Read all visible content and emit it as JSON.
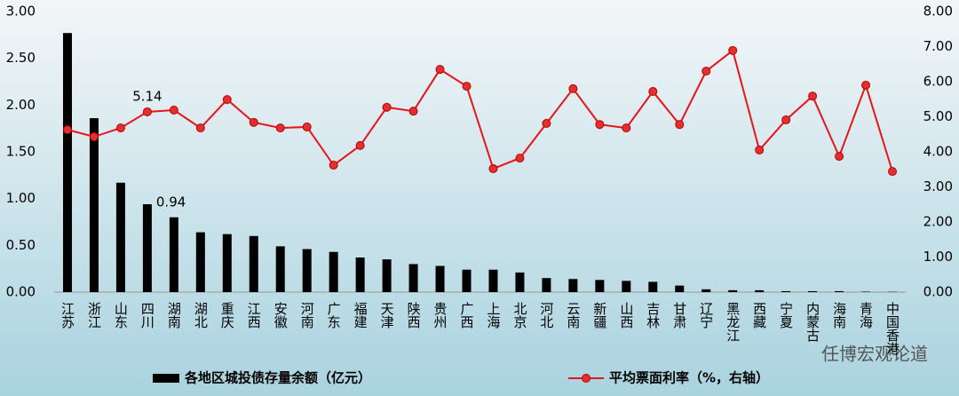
{
  "chart_data": {
    "type": "bar-line",
    "categories": [
      "江苏",
      "浙江",
      "山东",
      "四川",
      "湖南",
      "湖北",
      "重庆",
      "江西",
      "安徽",
      "河南",
      "广东",
      "福建",
      "天津",
      "陕西",
      "贵州",
      "广西",
      "上海",
      "北京",
      "河北",
      "云南",
      "新疆",
      "山西",
      "吉林",
      "甘肃",
      "辽宁",
      "黑龙江",
      "西藏",
      "宁夏",
      "内蒙古",
      "海南",
      "青海",
      "中国香港"
    ],
    "series": [
      {
        "name": "各地区城投债存量余额（亿元）",
        "color": "#000000",
        "kind": "bar",
        "values": [
          2.77,
          1.86,
          1.17,
          0.94,
          0.8,
          0.64,
          0.62,
          0.6,
          0.49,
          0.46,
          0.43,
          0.37,
          0.35,
          0.3,
          0.28,
          0.24,
          0.24,
          0.21,
          0.15,
          0.14,
          0.13,
          0.12,
          0.11,
          0.07,
          0.03,
          0.02,
          0.02,
          0.01,
          0.01,
          0.01,
          0.005,
          0.003
        ],
        "value_labels": [
          null,
          null,
          null,
          "0.94",
          null,
          null,
          null,
          null,
          null,
          null,
          null,
          null,
          null,
          null,
          null,
          null,
          null,
          null,
          null,
          null,
          null,
          null,
          null,
          null,
          null,
          null,
          null,
          null,
          null,
          null,
          null,
          null
        ]
      },
      {
        "name": "平均票面利率（%，右轴）",
        "color": "#e8141c",
        "kind": "line",
        "axis": "y2",
        "values": [
          4.63,
          4.43,
          4.68,
          5.14,
          5.19,
          4.68,
          5.49,
          4.84,
          4.68,
          4.71,
          3.62,
          4.18,
          5.27,
          5.16,
          6.35,
          5.87,
          3.52,
          3.82,
          4.81,
          5.8,
          4.78,
          4.68,
          5.72,
          4.78,
          6.3,
          6.89,
          4.05,
          4.91,
          5.59,
          3.87,
          5.9,
          3.44
        ],
        "value_labels": [
          null,
          null,
          null,
          "5.14",
          null,
          null,
          null,
          null,
          null,
          null,
          null,
          null,
          null,
          null,
          null,
          null,
          null,
          null,
          null,
          null,
          null,
          null,
          null,
          null,
          null,
          null,
          null,
          null,
          null,
          null,
          null,
          null
        ]
      }
    ],
    "ylim": [
      0,
      3
    ],
    "yticks": [
      {
        "value": 0,
        "label": "0.00"
      },
      {
        "value": 0.5,
        "label": "0.50"
      },
      {
        "value": 1,
        "label": "1.00"
      },
      {
        "value": 1.5,
        "label": "1.50"
      },
      {
        "value": 2,
        "label": "2.00"
      },
      {
        "value": 2.5,
        "label": "2.50"
      },
      {
        "value": 3,
        "label": "3.00"
      }
    ],
    "y2lim": [
      0,
      8
    ],
    "y2ticks": [
      {
        "value": 0,
        "label": "0.00"
      },
      {
        "value": 1,
        "label": "1.00"
      },
      {
        "value": 2,
        "label": "2.00"
      },
      {
        "value": 3,
        "label": "3.00"
      },
      {
        "value": 4,
        "label": "4.00"
      },
      {
        "value": 5,
        "label": "5.00"
      },
      {
        "value": 6,
        "label": "6.00"
      },
      {
        "value": 7,
        "label": "7.00"
      },
      {
        "value": 8,
        "label": "8.00"
      }
    ],
    "legend": "bottom",
    "watermark": "任博宏观论道"
  }
}
